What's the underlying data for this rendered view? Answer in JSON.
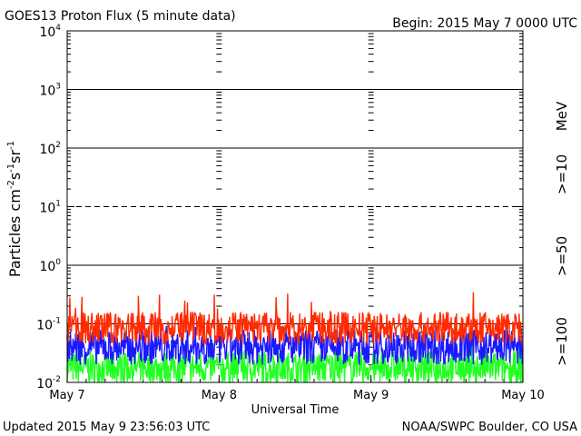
{
  "chart_data": {
    "type": "line",
    "title": "GOES13 Proton Flux (5 minute data)",
    "begin_label": "Begin: 2015 May 7 0000 UTC",
    "ylabel": "Particles cm",
    "ylabel_sup1": "-2",
    "ylabel_mid1": "s",
    "ylabel_sup2": "-1",
    "ylabel_mid2": "sr",
    "ylabel_sup3": "-1",
    "xlabel": "Universal Time",
    "y_scale": "log",
    "ylim": [
      0.01,
      10000
    ],
    "y_ticks": [
      {
        "base": "10",
        "exp": "-2"
      },
      {
        "base": "10",
        "exp": "-1"
      },
      {
        "base": "10",
        "exp": "0"
      },
      {
        "base": "10",
        "exp": "1"
      },
      {
        "base": "10",
        "exp": "2"
      },
      {
        "base": "10",
        "exp": "3"
      },
      {
        "base": "10",
        "exp": "4"
      }
    ],
    "x_ticks": [
      "May 7",
      "May 8",
      "May 9",
      "May 10"
    ],
    "xlim_days": [
      0,
      3
    ],
    "right_unit": "MeV",
    "series": [
      {
        "name": ">=10",
        "color": "#ff2a00",
        "baseline": 0.085,
        "spread": 0.55,
        "spike_max": 0.42
      },
      {
        "name": ">=50",
        "color": "#1a1aff",
        "baseline": 0.04,
        "spread": 0.6,
        "spike_max": 0.11
      },
      {
        "name": ">=100",
        "color": "#22ff22",
        "baseline": 0.018,
        "spread": 0.55,
        "spike_max": 0.05
      }
    ]
  },
  "footer": {
    "updated": "Updated 2015 May  9 23:56:03 UTC",
    "credit": "NOAA/SWPC Boulder, CO USA"
  }
}
